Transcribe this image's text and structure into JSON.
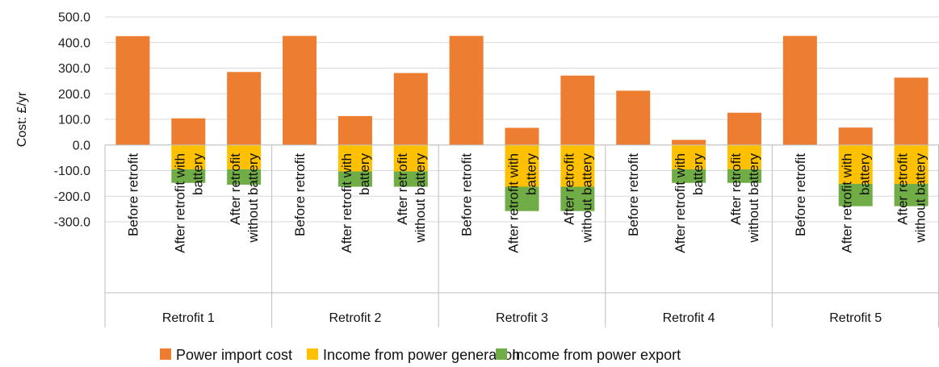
{
  "chart_data": {
    "type": "bar",
    "stacked": true,
    "ylabel": "Cost: £/yr",
    "ylim": [
      -300,
      500
    ],
    "yticks": [
      500,
      400,
      300,
      200,
      100,
      0,
      -100,
      -200,
      -300
    ],
    "ytick_labels": [
      "500.0",
      "400.0",
      "300.0",
      "200.0",
      "100.0",
      "0.0",
      "-100.0",
      "-200.0",
      "-300.0"
    ],
    "grid": true,
    "legend_position": "bottom",
    "groups": [
      {
        "name": "Retrofit 1",
        "categories": [
          {
            "lines": [
              "Before retrofit"
            ]
          },
          {
            "lines": [
              "After retrofit with",
              "battery"
            ]
          },
          {
            "lines": [
              "After retrofit",
              "without battery"
            ]
          }
        ]
      },
      {
        "name": "Retrofit 2",
        "categories": [
          {
            "lines": [
              "Before retrofit"
            ]
          },
          {
            "lines": [
              "After retrofit with",
              "battery"
            ]
          },
          {
            "lines": [
              "After retrofit",
              "without battery"
            ]
          }
        ]
      },
      {
        "name": "Retrofit 3",
        "categories": [
          {
            "lines": [
              "Before retrofit"
            ]
          },
          {
            "lines": [
              "After retrofit with",
              "battery"
            ]
          },
          {
            "lines": [
              "After retrofit",
              "without battery"
            ]
          }
        ]
      },
      {
        "name": "Retrofit 4",
        "categories": [
          {
            "lines": [
              "Before retrofit"
            ]
          },
          {
            "lines": [
              "After retrofit with",
              "battery"
            ]
          },
          {
            "lines": [
              "After retrofit",
              "without battery"
            ]
          }
        ]
      },
      {
        "name": "Retrofit 5",
        "categories": [
          {
            "lines": [
              "Before retrofit"
            ]
          },
          {
            "lines": [
              "After retrofit with",
              "battery"
            ]
          },
          {
            "lines": [
              "After retrofit",
              "without battery"
            ]
          }
        ]
      }
    ],
    "series": [
      {
        "name": "Power import cost",
        "color": "#ED7D31",
        "values": [
          425,
          104,
          285,
          426,
          113,
          281,
          426,
          67,
          271,
          212,
          20,
          126,
          426,
          68,
          263
        ]
      },
      {
        "name": "Income from power generation",
        "color": "#FFC000",
        "values": [
          0,
          -95,
          -95,
          0,
          -103,
          -103,
          0,
          -163,
          -163,
          0,
          -95,
          -95,
          0,
          -152,
          -152
        ]
      },
      {
        "name": "Income from power export",
        "color": "#70AD47",
        "values": [
          0,
          -53,
          -60,
          0,
          -60,
          -60,
          0,
          -95,
          -95,
          0,
          -53,
          -53,
          0,
          -87,
          -87
        ]
      }
    ]
  }
}
